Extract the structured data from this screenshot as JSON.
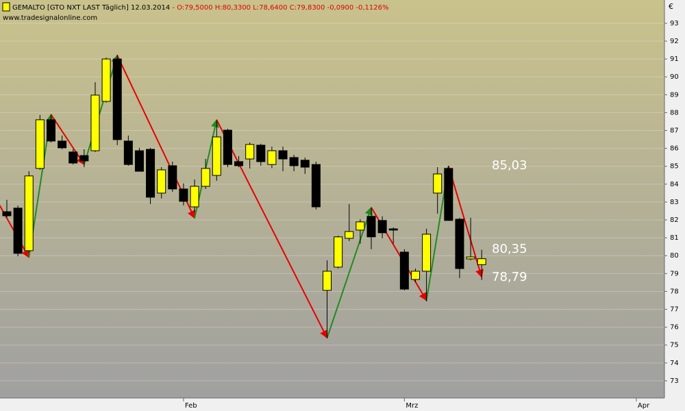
{
  "chart_data": {
    "type": "candlestick",
    "title": "GEMALTO [GTO NXT LAST Täglich]",
    "date": "12.03.2014",
    "quote": "- O:79,5000 H:80,3300 L:78,6400 C:79,8300 -0,0900 -0,1126%",
    "source": "www.tradesignalonline.com",
    "currency": "€",
    "open": [
      82.46,
      82.66,
      80.28,
      84.88,
      87.6,
      86.41,
      85.8,
      85.6,
      85.87,
      88.63,
      91.0,
      86.41,
      85.87,
      85.95,
      83.5,
      85.03,
      83.73,
      82.73,
      83.88,
      84.49,
      87.02,
      85.26,
      85.41,
      86.18,
      85.1,
      85.87,
      85.49,
      85.34,
      85.1,
      78.06,
      79.36,
      80.97,
      81.43,
      82.2,
      81.97,
      81.5,
      80.2,
      78.67,
      79.13,
      83.5,
      84.88,
      82.04,
      79.82,
      79.5
    ],
    "high": [
      83.12,
      82.8,
      84.72,
      87.87,
      87.87,
      86.72,
      85.95,
      85.95,
      89.7,
      91.08,
      91.24,
      86.72,
      86.03,
      86.03,
      84.95,
      85.26,
      84.04,
      84.26,
      85.41,
      87.56,
      87.1,
      85.57,
      86.33,
      86.26,
      86.1,
      86.1,
      85.64,
      85.49,
      85.26,
      79.74,
      81.12,
      82.89,
      82.04,
      82.66,
      82.2,
      81.58,
      80.36,
      79.28,
      81.51,
      84.95,
      85.03,
      82.12,
      82.12,
      80.33
    ],
    "low": [
      82.12,
      79.97,
      80.2,
      84.8,
      86.33,
      85.95,
      85.1,
      84.95,
      85.8,
      88.56,
      86.18,
      85.03,
      84.72,
      82.89,
      83.2,
      83.57,
      82.81,
      82.43,
      83.73,
      84.19,
      84.95,
      84.95,
      84.88,
      85.03,
      84.9,
      84.72,
      84.72,
      84.57,
      82.58,
      75.38,
      79.28,
      80.82,
      80.67,
      80.36,
      80.97,
      80.67,
      78.06,
      78.52,
      77.44,
      82.35,
      81.97,
      78.75,
      79.74,
      78.64
    ],
    "close": [
      82.23,
      80.13,
      84.46,
      87.6,
      86.41,
      86.03,
      85.18,
      85.3,
      88.98,
      91.0,
      86.49,
      85.1,
      84.72,
      83.27,
      84.8,
      83.73,
      83.04,
      83.88,
      84.88,
      86.64,
      85.1,
      85.03,
      86.22,
      85.26,
      85.87,
      85.41,
      85.03,
      84.95,
      82.73,
      79.13,
      81.05,
      81.35,
      81.89,
      81.05,
      81.28,
      81.43,
      78.13,
      79.13,
      81.2,
      84.57,
      81.97,
      79.28,
      79.93,
      79.83
    ],
    "up_color": "#ffff00",
    "down_color": "#000000",
    "zigzag": {
      "x": [
        -1,
        2,
        4,
        7,
        10,
        17,
        19,
        29,
        33,
        38,
        40,
        43
      ],
      "values": [
        83.2,
        79.9,
        87.9,
        85.1,
        91.2,
        82.1,
        87.6,
        75.4,
        82.7,
        77.5,
        85.0,
        78.8
      ],
      "up_color": "#1e8c1e",
      "down_color": "#e60000"
    },
    "levels": [
      {
        "value": 85.03,
        "label": "85,03"
      },
      {
        "value": 80.35,
        "label": "80,35"
      },
      {
        "value": 78.79,
        "label": "78,79"
      }
    ],
    "xlim": [
      -0.62,
      59.55
    ],
    "xticks": [
      {
        "value": 16,
        "label": "Feb"
      },
      {
        "value": 36,
        "label": "Mrz"
      },
      {
        "value": 57,
        "label": "Apr"
      }
    ],
    "ylim": [
      72.04,
      94.3
    ],
    "yticks": [
      73,
      74,
      75,
      76,
      77,
      78,
      79,
      80,
      81,
      82,
      83,
      84,
      85,
      86,
      87,
      88,
      89,
      90,
      91,
      92,
      93
    ],
    "grid": true
  }
}
